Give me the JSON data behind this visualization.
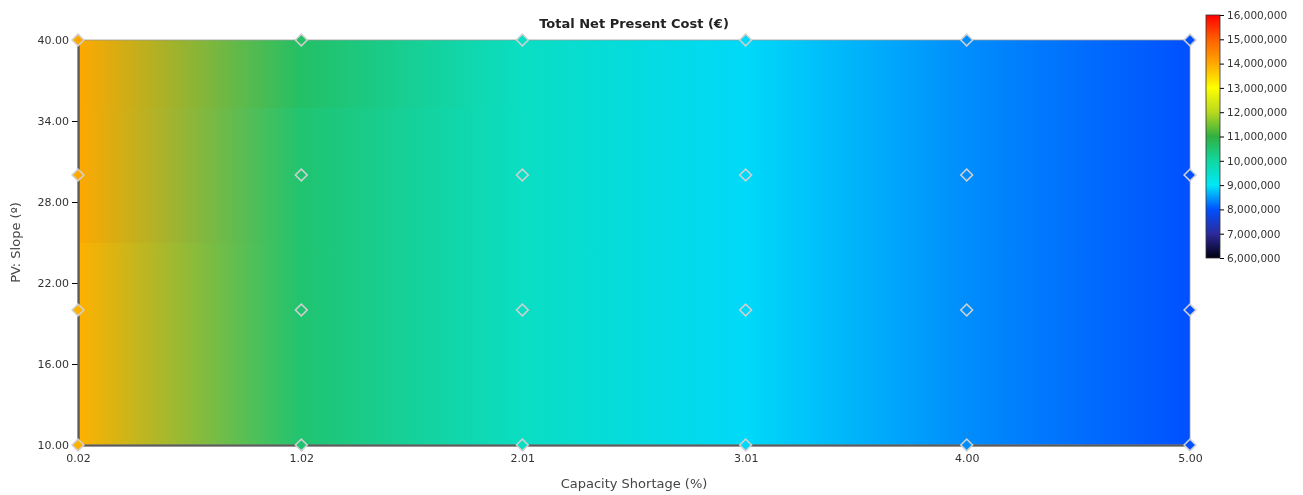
{
  "chart_data": {
    "type": "scatter",
    "title": "Total Net Present Cost (€)",
    "xlabel": "Capacity Shortage (%)",
    "ylabel": "PV: Slope (º)",
    "xlim": [
      0.02,
      5.0
    ],
    "xticks": [
      0.02,
      1.02,
      2.01,
      3.01,
      {
        "value": 4.0,
        "label": "4.00"
      },
      {
        "value": 5.0,
        "label": "5.00"
      }
    ],
    "ylim": [
      10,
      40
    ],
    "yticks": [
      {
        "value": 10,
        "label": "10.00"
      },
      {
        "value": 16,
        "label": "16.00"
      },
      {
        "value": 22,
        "label": "22.00"
      },
      {
        "value": 28,
        "label": "28.00"
      },
      {
        "value": 34,
        "label": "34.00"
      },
      {
        "value": 40,
        "label": "40.00"
      }
    ],
    "clim": [
      6000000,
      16000000
    ],
    "cticks": [
      {
        "value": 6000000,
        "label": "6,000,000"
      },
      {
        "value": 7000000,
        "label": "7,000,000"
      },
      {
        "value": 8000000,
        "label": "8,000,000"
      },
      {
        "value": 9000000,
        "label": "9,000,000"
      },
      {
        "value": 10000000,
        "label": "10,000,000"
      },
      {
        "value": 11000000,
        "label": "11,000,000"
      },
      {
        "value": 12000000,
        "label": "12,000,000"
      },
      {
        "value": 13000000,
        "label": "13,000,000"
      },
      {
        "value": 14000000,
        "label": "14,000,000"
      },
      {
        "value": 15000000,
        "label": "15,000,000"
      },
      {
        "value": 16000000,
        "label": "16,000,000"
      }
    ],
    "colors": [
      "#000010",
      "#2c2a9c",
      "#0050ff",
      "#00e8f8",
      "#10d8a0",
      "#30b040",
      "#b8d820",
      "#ffff00",
      "#ffa800",
      "#ff6000",
      "#ff0000"
    ],
    "marker": "diamond",
    "grid": false,
    "series": [
      {
        "color": "#d0d0d0",
        "x": [
          0.02,
          1.02,
          2.01,
          3.01,
          4.0,
          5.0
        ],
        "values": [
          10,
          10,
          10,
          10,
          10,
          10
        ],
        "cvalues": [
          13900000,
          10500000,
          9600000,
          8900000,
          8400000,
          8000000
        ]
      },
      {
        "color": "#d0d0d0",
        "x": [
          0.02,
          1.02,
          2.01,
          3.01,
          4.0,
          5.0
        ],
        "values": [
          20,
          20,
          20,
          20,
          20,
          20
        ],
        "cvalues": [
          13900000,
          10500000,
          9600000,
          8900000,
          8400000,
          8000000
        ]
      },
      {
        "color": "#d0d0d0",
        "x": [
          0.02,
          1.02,
          2.01,
          3.01,
          4.0,
          5.0
        ],
        "values": [
          30,
          30,
          30,
          30,
          30,
          30
        ],
        "cvalues": [
          14000000,
          10500000,
          9600000,
          8900000,
          8400000,
          8000000
        ]
      },
      {
        "color": "#d0d0d0",
        "x": [
          0.02,
          1.02,
          2.01,
          3.01,
          4.0,
          5.0
        ],
        "values": [
          40,
          40,
          40,
          40,
          40,
          40
        ],
        "cvalues": [
          14000000,
          10600000,
          9600000,
          8900000,
          8400000,
          8000000
        ]
      }
    ]
  }
}
